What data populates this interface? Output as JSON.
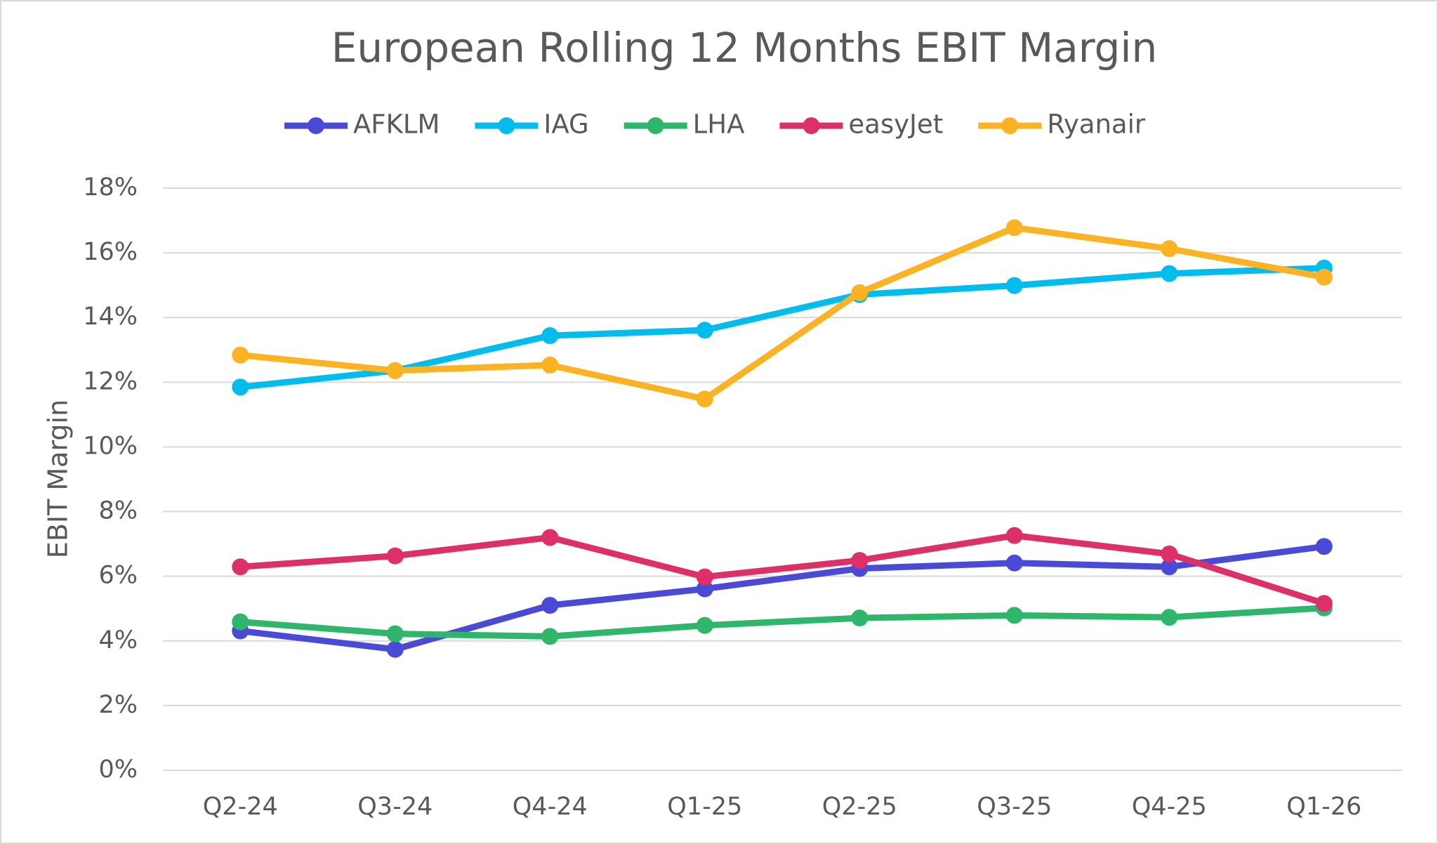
{
  "chart_data": {
    "type": "line",
    "title": "European Rolling 12 Months EBIT Margin",
    "y_label": "EBIT Margin",
    "categories": [
      "Q2-24",
      "Q3-24",
      "Q4-24",
      "Q1-25",
      "Q2-25",
      "Q3-25",
      "Q4-25",
      "Q1-26"
    ],
    "series": [
      {
        "name": "AFKLM",
        "color": "#4a4ad6",
        "values": [
          4.31,
          3.74,
          5.1,
          5.61,
          6.24,
          6.41,
          6.29,
          6.92
        ]
      },
      {
        "name": "IAG",
        "color": "#00bdee",
        "values": [
          11.85,
          12.36,
          13.44,
          13.61,
          14.71,
          14.99,
          15.36,
          15.53
        ]
      },
      {
        "name": "LHA",
        "color": "#2eb66b",
        "values": [
          4.59,
          4.22,
          4.14,
          4.48,
          4.71,
          4.79,
          4.73,
          5.02
        ]
      },
      {
        "name": "easyJet",
        "color": "#de3068",
        "values": [
          6.29,
          6.63,
          7.2,
          5.98,
          6.49,
          7.26,
          6.69,
          5.16
        ]
      },
      {
        "name": "Ryanair",
        "color": "#fbb324",
        "values": [
          12.84,
          12.36,
          12.53,
          11.48,
          14.77,
          16.78,
          16.13,
          15.25
        ]
      }
    ],
    "ylim": [
      0,
      18
    ],
    "yticks": [
      {
        "value": 0,
        "label": "0%"
      },
      {
        "value": 2,
        "label": "2%"
      },
      {
        "value": 4,
        "label": "4%"
      },
      {
        "value": 6,
        "label": "6%"
      },
      {
        "value": 8,
        "label": "8%"
      },
      {
        "value": 10,
        "label": "10%"
      },
      {
        "value": 12,
        "label": "12%"
      },
      {
        "value": 14,
        "label": "14%"
      },
      {
        "value": 16,
        "label": "16%"
      },
      {
        "value": 18,
        "label": "18%"
      }
    ],
    "grid": true,
    "legend": "top"
  }
}
